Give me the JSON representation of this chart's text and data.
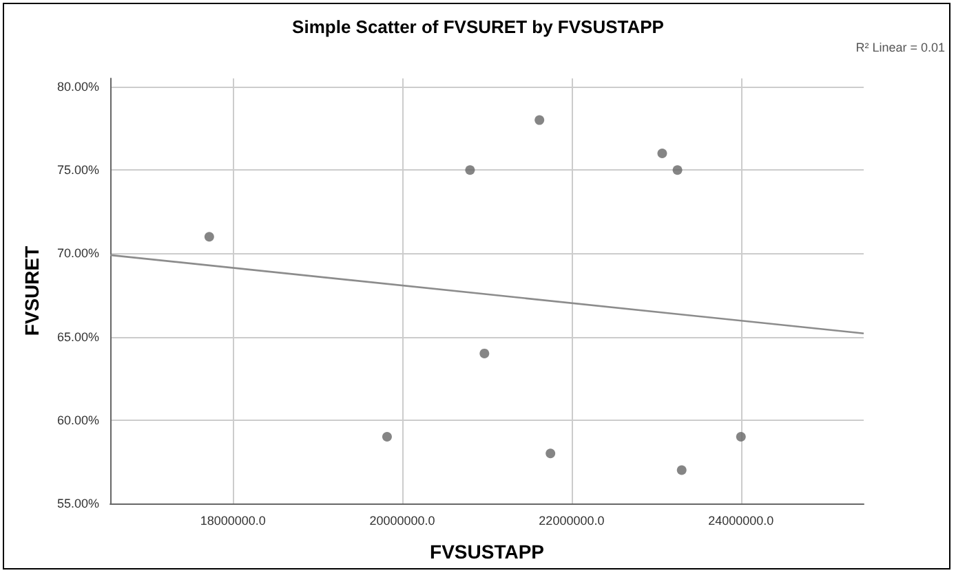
{
  "chart_data": {
    "type": "scatter",
    "title": "Simple Scatter of FVSURET by FVSUSTAPP",
    "xlabel": "FVSUSTAPP",
    "ylabel": "FVSURET",
    "annotations": [
      "R² Linear = 0.01"
    ],
    "series": [
      {
        "color": "#666666",
        "marker": "circle",
        "x": [
          17720000,
          19820000,
          20800000,
          20970000,
          21620000,
          21750000,
          23070000,
          23250000,
          23300000,
          24000000
        ],
        "values": [
          71,
          59,
          75,
          64,
          78,
          58,
          76,
          75,
          57,
          59
        ]
      },
      {
        "type": "line",
        "color": "#8c8c8c",
        "marker": "none",
        "line_style": "solid",
        "x": [
          16550000,
          25450000
        ],
        "values": [
          69.9,
          65.2
        ]
      }
    ],
    "xlim": [
      16550000,
      25450000
    ],
    "xticks": [
      {
        "value": 18000000,
        "label": "18000000.0"
      },
      {
        "value": 20000000,
        "label": "20000000.0"
      },
      {
        "value": 22000000,
        "label": "22000000.0"
      },
      {
        "value": 24000000,
        "label": "24000000.0"
      }
    ],
    "ylim": [
      55,
      80.5
    ],
    "yticks": [
      {
        "value": 55,
        "label": "55.00%"
      },
      {
        "value": 60,
        "label": "60.00%"
      },
      {
        "value": 65,
        "label": "65.00%"
      },
      {
        "value": 70,
        "label": "70.00%"
      },
      {
        "value": 75,
        "label": "75.00%"
      },
      {
        "value": 80,
        "label": "80.00%"
      }
    ],
    "grid": true
  }
}
